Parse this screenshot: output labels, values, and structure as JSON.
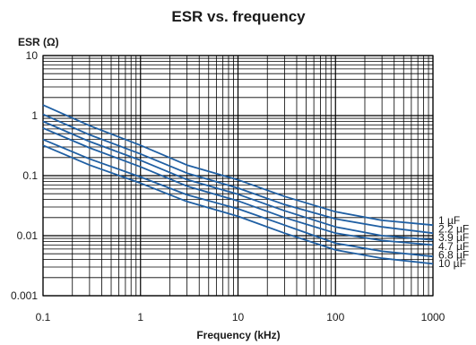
{
  "chart_data": {
    "type": "line",
    "title": "ESR vs. frequency",
    "xlabel": "Frequency (kHz)",
    "ylabel": "ESR (Ω)",
    "xscale": "log",
    "yscale": "log",
    "xlim": [
      0.1,
      1000
    ],
    "ylim": [
      0.001,
      10
    ],
    "x_ticks": [
      "0.1",
      "1",
      "10",
      "100",
      "1000"
    ],
    "y_ticks": [
      "0.001",
      "0.01",
      "0.1",
      "1",
      "10"
    ],
    "grid": true,
    "legend_placement": "right, at line ends",
    "line_color": "#1f5fa3",
    "x": [
      0.1,
      0.3,
      1,
      3,
      10,
      30,
      100,
      300,
      1000
    ],
    "series": [
      {
        "name": "1 µF",
        "values": [
          1.5,
          0.68,
          0.32,
          0.15,
          0.085,
          0.045,
          0.025,
          0.018,
          0.015
        ]
      },
      {
        "name": "2.2 µF",
        "values": [
          1.05,
          0.48,
          0.23,
          0.11,
          0.062,
          0.033,
          0.019,
          0.014,
          0.011
        ]
      },
      {
        "name": "3.9 µF",
        "values": [
          0.8,
          0.37,
          0.18,
          0.086,
          0.049,
          0.026,
          0.014,
          0.01,
          0.0085
        ]
      },
      {
        "name": "4.7 µF",
        "values": [
          0.62,
          0.29,
          0.14,
          0.067,
          0.038,
          0.02,
          0.011,
          0.0083,
          0.007
        ]
      },
      {
        "name": "6.8 µF",
        "values": [
          0.4,
          0.19,
          0.095,
          0.048,
          0.028,
          0.015,
          0.0075,
          0.0055,
          0.0045
        ]
      },
      {
        "name": "10 µF",
        "values": [
          0.32,
          0.15,
          0.075,
          0.037,
          0.021,
          0.011,
          0.0058,
          0.0042,
          0.0034
        ]
      }
    ]
  }
}
